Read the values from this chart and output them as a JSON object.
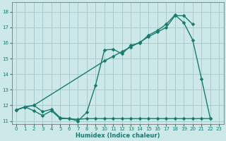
{
  "xlabel": "Humidex (Indice chaleur)",
  "bg_color": "#cce8e8",
  "grid_color": "#aacccc",
  "line_color": "#1a7a6e",
  "xlim": [
    -0.5,
    23.5
  ],
  "ylim": [
    10.8,
    18.6
  ],
  "xticks": [
    0,
    1,
    2,
    3,
    4,
    5,
    6,
    7,
    8,
    9,
    10,
    11,
    12,
    13,
    14,
    15,
    16,
    17,
    18,
    19,
    20,
    21,
    22,
    23
  ],
  "yticks": [
    11,
    12,
    13,
    14,
    15,
    16,
    17,
    18
  ],
  "line1_x": [
    0,
    1,
    2,
    3,
    4,
    5,
    6,
    7,
    8,
    9,
    10,
    11,
    12,
    13,
    14,
    15,
    16,
    17,
    18,
    19,
    20,
    21,
    22
  ],
  "line1_y": [
    11.7,
    11.9,
    12.0,
    11.6,
    11.75,
    11.2,
    11.15,
    11.0,
    11.55,
    13.3,
    15.55,
    15.6,
    15.3,
    15.85,
    16.0,
    16.5,
    16.8,
    17.2,
    17.8,
    17.3,
    16.2,
    13.7,
    11.15
  ],
  "line2_x": [
    0,
    1,
    2,
    10,
    11,
    12,
    13,
    14,
    15,
    16,
    17,
    18,
    19,
    20
  ],
  "line2_y": [
    11.7,
    11.9,
    12.0,
    14.85,
    15.15,
    15.45,
    15.75,
    16.05,
    16.4,
    16.7,
    17.0,
    17.75,
    17.75,
    17.2
  ],
  "line3_x": [
    0,
    1,
    2,
    3,
    4,
    5,
    6,
    7,
    8,
    9,
    10,
    11,
    12,
    13,
    14,
    15,
    16,
    17,
    18,
    19,
    20,
    21,
    22
  ],
  "line3_y": [
    11.7,
    11.9,
    11.65,
    11.35,
    11.65,
    11.15,
    11.15,
    11.1,
    11.15,
    11.15,
    11.15,
    11.15,
    11.15,
    11.15,
    11.15,
    11.15,
    11.15,
    11.15,
    11.15,
    11.15,
    11.15,
    11.15,
    11.15
  ]
}
